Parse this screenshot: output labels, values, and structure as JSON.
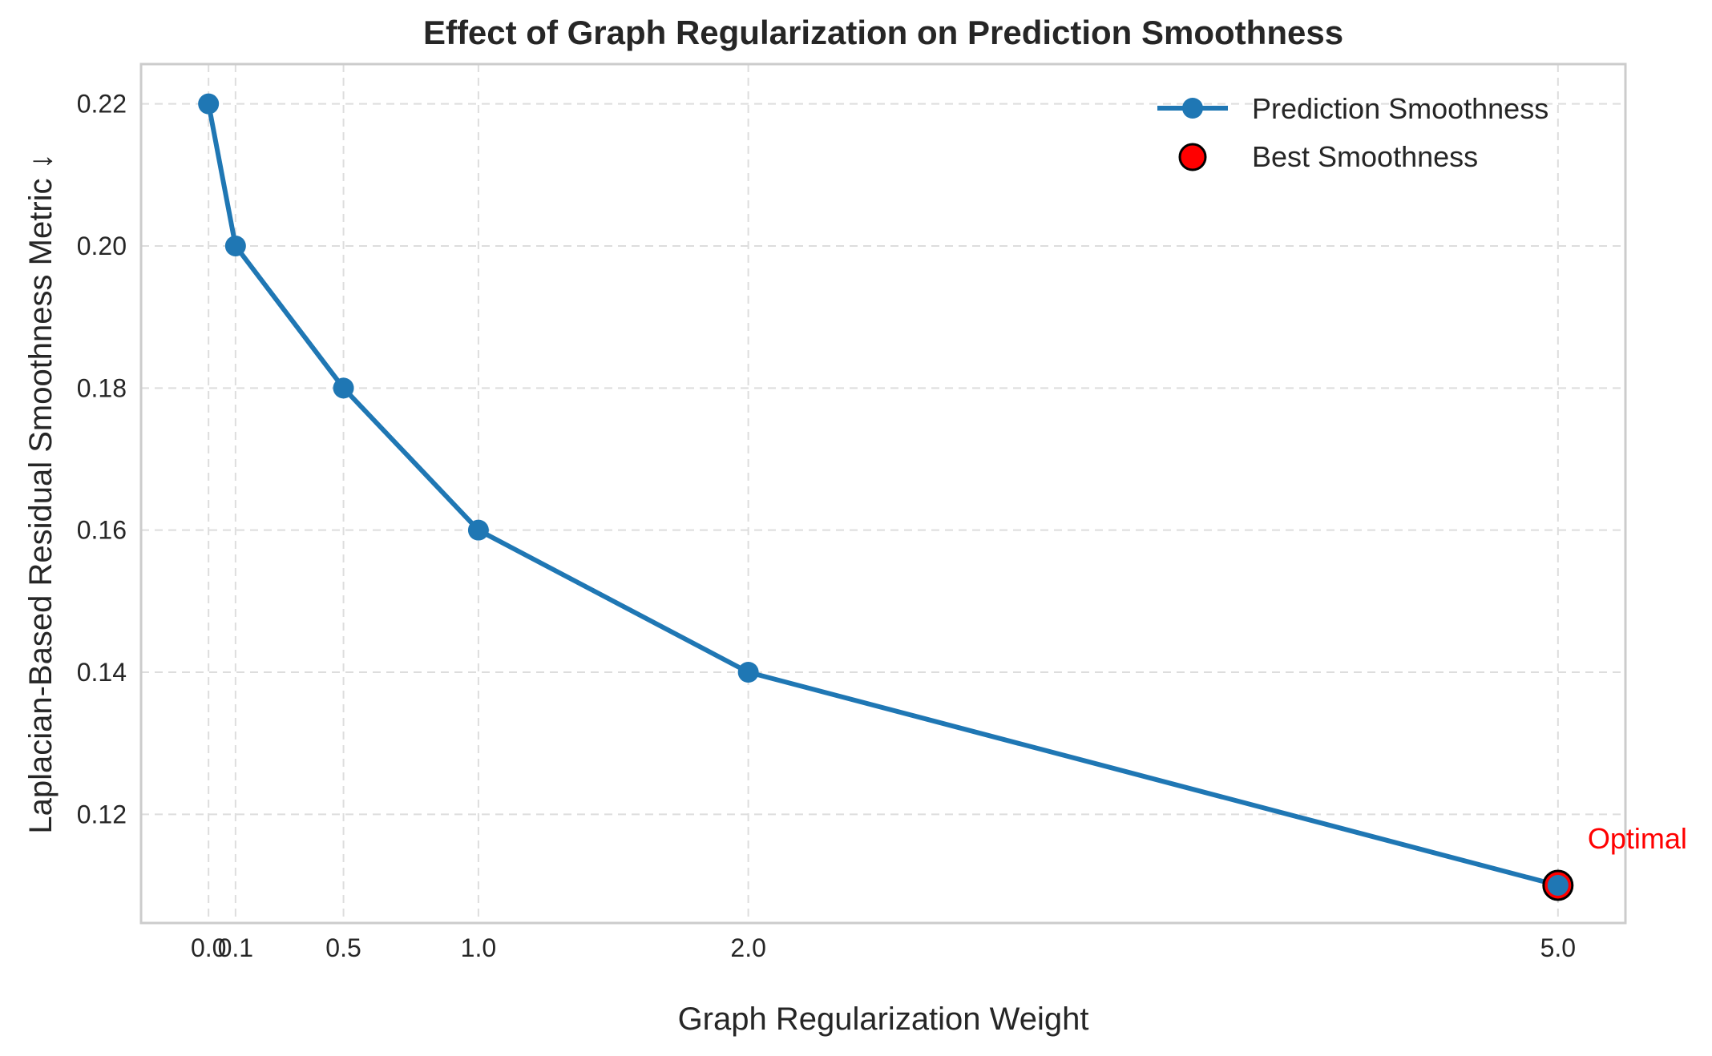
{
  "chart_data": {
    "type": "line",
    "title": "Effect of Graph Regularization on Prediction Smoothness",
    "xlabel": "Graph Regularization Weight",
    "ylabel": "Laplacian-Based Residual Smoothness Metric ↓",
    "x": [
      0.0,
      0.1,
      0.5,
      1.0,
      2.0,
      5.0
    ],
    "x_tick_labels": [
      "0.0",
      "0.1",
      "0.5",
      "1.0",
      "2.0",
      "5.0"
    ],
    "y_ticks": [
      0.12,
      0.14,
      0.16,
      0.18,
      0.2,
      0.22
    ],
    "y_tick_labels": [
      "0.12",
      "0.14",
      "0.16",
      "0.18",
      "0.20",
      "0.22"
    ],
    "xlim": [
      -0.25,
      5.25
    ],
    "ylim": [
      0.1047,
      0.2256
    ],
    "grid": true,
    "series": [
      {
        "name": "Prediction Smoothness",
        "values": [
          0.22,
          0.2,
          0.18,
          0.16,
          0.14,
          0.11
        ],
        "color": "#1f77b4"
      }
    ],
    "best_point": {
      "name": "Best Smoothness",
      "x": 5.0,
      "y": 0.11,
      "color": "#ff0000"
    },
    "annotation": {
      "text": "Optimal",
      "x": 5.0,
      "y": 0.11,
      "color": "#ff0000"
    },
    "legend_position": "top-right"
  }
}
